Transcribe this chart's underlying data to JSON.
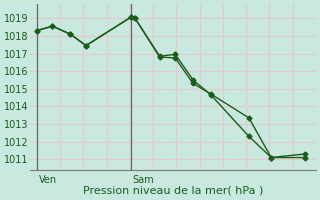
{
  "title": "Pression niveau de la mer( hPa )",
  "bg_color": "#c8e8e0",
  "grid_color_pink": "#e8c8c8",
  "grid_color_cyan": "#b0d8d0",
  "line_color": "#1a5c1a",
  "ylim": [
    1010.4,
    1019.8
  ],
  "yticks": [
    1011,
    1012,
    1013,
    1014,
    1015,
    1016,
    1017,
    1018,
    1019
  ],
  "xlim": [
    -0.3,
    12.5
  ],
  "ven_x": 0.0,
  "sam_x": 4.2,
  "series1_x": [
    0,
    0.7,
    1.5,
    2.2,
    4.2,
    4.4,
    5.5,
    6.2,
    7.0,
    7.8,
    9.5,
    10.5,
    12.0
  ],
  "series1_y": [
    1018.3,
    1018.55,
    1018.1,
    1017.45,
    1019.05,
    1019.0,
    1016.8,
    1016.75,
    1015.3,
    1014.7,
    1013.35,
    1011.1,
    1011.1
  ],
  "series2_x": [
    0,
    0.7,
    1.5,
    2.2,
    4.2,
    4.4,
    5.5,
    6.2,
    7.0,
    7.8,
    9.5,
    10.5,
    12.0
  ],
  "series2_y": [
    1018.3,
    1018.55,
    1018.1,
    1017.45,
    1019.05,
    1019.0,
    1016.85,
    1016.95,
    1015.5,
    1014.65,
    1012.3,
    1011.1,
    1011.3
  ],
  "ven_label": "Ven",
  "sam_label": "Sam",
  "tick_fontsize": 7,
  "xlabel_fontsize": 8
}
